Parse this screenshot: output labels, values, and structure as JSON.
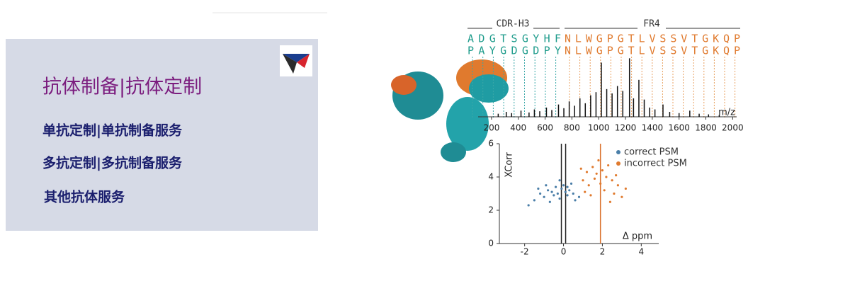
{
  "banner": {
    "title": "抗体制备|抗体定制",
    "menu": [
      "单抗定制|单抗制备服务",
      "多抗定制|多抗制备服务",
      "其他抗体服务"
    ]
  },
  "sequence": {
    "regions": [
      "CDR-H3",
      "FR4"
    ],
    "rows": [
      [
        "ADGTSGYHF",
        "NLWGPGTLVSSVTGKQP"
      ],
      [
        "PAYGDGDPY",
        "NLWGPGTLVSSVTGKQP"
      ]
    ]
  },
  "chart_data": [
    {
      "type": "bar",
      "x_label": "m/z",
      "color": "#111111",
      "x": [
        250,
        310,
        350,
        420,
        480,
        520,
        560,
        610,
        650,
        700,
        740,
        780,
        820,
        860,
        900,
        940,
        980,
        1020,
        1060,
        1100,
        1140,
        1180,
        1230,
        1260,
        1300,
        1340,
        1380,
        1420,
        1480,
        1530,
        1600,
        1680,
        1750,
        1820,
        1900
      ],
      "values": [
        5,
        8,
        6,
        10,
        7,
        12,
        9,
        15,
        11,
        20,
        14,
        25,
        18,
        30,
        22,
        35,
        40,
        88,
        45,
        38,
        50,
        42,
        95,
        30,
        60,
        28,
        15,
        12,
        20,
        8,
        6,
        10,
        5,
        4,
        3
      ],
      "xlim": [
        100,
        2030
      ],
      "ylim": [
        0,
        100
      ],
      "xticks": [
        200,
        400,
        600,
        800,
        1000,
        1200,
        1400,
        1600,
        1800,
        2000
      ]
    },
    {
      "type": "scatter",
      "x_label": "Δ ppm",
      "y_label": "XCorr",
      "xlim": [
        -3.3,
        4.9
      ],
      "ylim": [
        0,
        6
      ],
      "xticks": [
        -2,
        0,
        2,
        4
      ],
      "yticks": [
        0,
        2,
        4,
        6
      ],
      "reference_lines": [
        {
          "value": 0,
          "color": "#222222"
        },
        {
          "value": 1.9,
          "color": "#d9702a"
        }
      ],
      "series": [
        {
          "name": "correct PSM",
          "color": "#4a7ea8",
          "x": [
            -1.5,
            -1.2,
            -1.0,
            -0.8,
            -0.6,
            -0.5,
            -0.4,
            -0.3,
            -0.2,
            -0.1,
            0,
            0.1,
            0.2,
            0.3,
            0.4,
            0.5,
            -0.7,
            -1.8,
            0.6,
            -0.2,
            0.2,
            -0.9,
            0.8,
            -1.3
          ],
          "values": [
            2.6,
            3.0,
            2.8,
            3.2,
            3.1,
            2.9,
            3.4,
            3.0,
            2.7,
            3.3,
            3.5,
            3.1,
            2.9,
            3.2,
            3.6,
            3.0,
            2.5,
            2.3,
            2.6,
            3.8,
            3.4,
            3.5,
            2.8,
            3.3
          ]
        },
        {
          "name": "incorrect PSM",
          "color": "#e07a2e",
          "x": [
            1.0,
            1.2,
            1.3,
            1.5,
            1.6,
            1.7,
            1.8,
            1.9,
            2.0,
            2.1,
            2.2,
            2.3,
            2.5,
            2.6,
            2.8,
            3.0,
            1.4,
            0.9,
            2.4,
            3.2,
            1.1,
            2.7
          ],
          "values": [
            3.8,
            4.3,
            3.5,
            4.6,
            3.9,
            4.2,
            5.0,
            3.6,
            4.4,
            3.2,
            4.0,
            4.7,
            3.8,
            3.0,
            3.5,
            2.8,
            2.9,
            4.5,
            2.5,
            3.3,
            3.1,
            4.1
          ]
        }
      ]
    }
  ]
}
